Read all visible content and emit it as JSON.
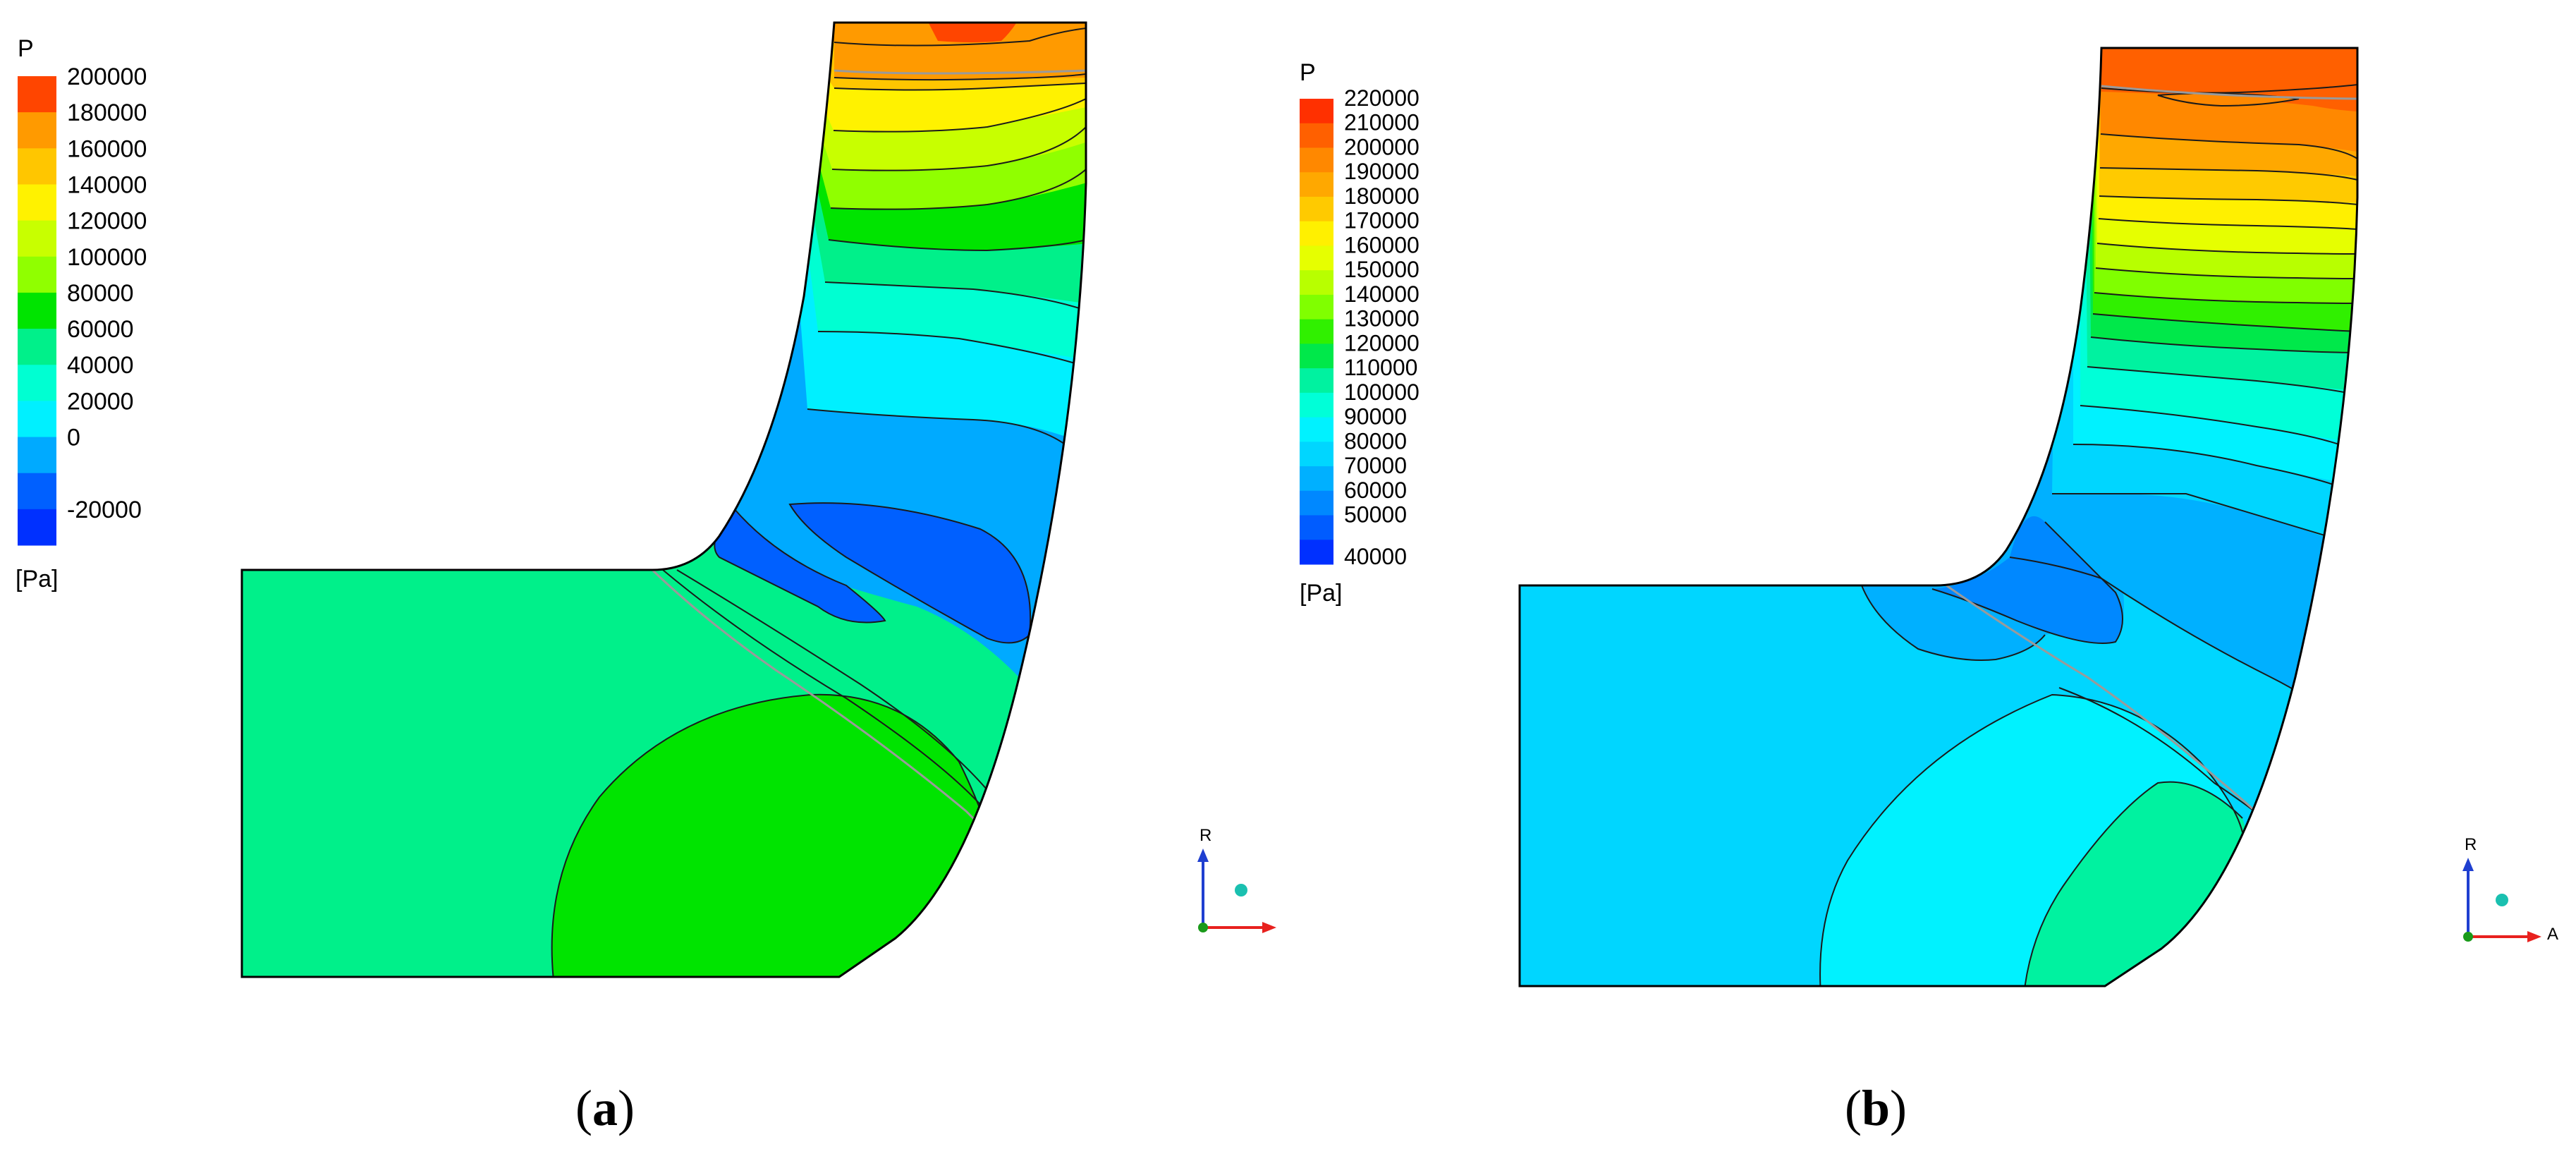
{
  "panels": [
    {
      "id": "a",
      "legend": {
        "title": "P",
        "unit": "[Pa]",
        "ticks": [
          "200000",
          "180000",
          "160000",
          "140000",
          "120000",
          "100000",
          "80000",
          "60000",
          "40000",
          "20000",
          "0",
          "-20000"
        ],
        "colors": [
          "#ff4500",
          "#ff9a00",
          "#ffc600",
          "#fff200",
          "#c8ff00",
          "#90ff00",
          "#00e400",
          "#00f08a",
          "#00ffd2",
          "#00f0ff",
          "#00aaff",
          "#0060ff",
          "#0030ff"
        ]
      },
      "caption_open": "(",
      "caption_letter": "a",
      "caption_close": ")",
      "axis_label": "R"
    },
    {
      "id": "b",
      "legend": {
        "title": "P",
        "unit": "[Pa]",
        "ticks": [
          "220000",
          "210000",
          "200000",
          "190000",
          "180000",
          "170000",
          "160000",
          "150000",
          "140000",
          "130000",
          "120000",
          "110000",
          "100000",
          "90000",
          "80000",
          "70000",
          "60000",
          "50000",
          "40000"
        ],
        "colors": [
          "#ff3000",
          "#ff6000",
          "#ff8800",
          "#ffa800",
          "#ffca00",
          "#fff000",
          "#e6ff00",
          "#b8ff00",
          "#80ff00",
          "#30f000",
          "#00e84a",
          "#00f2a0",
          "#00ffd8",
          "#00f2ff",
          "#00d6ff",
          "#00b0ff",
          "#0088ff",
          "#005cff",
          "#0030ff"
        ]
      },
      "caption_open": "(",
      "caption_letter": "b",
      "caption_close": ")",
      "axis_label": "R",
      "axis_label_2": "A"
    }
  ]
}
